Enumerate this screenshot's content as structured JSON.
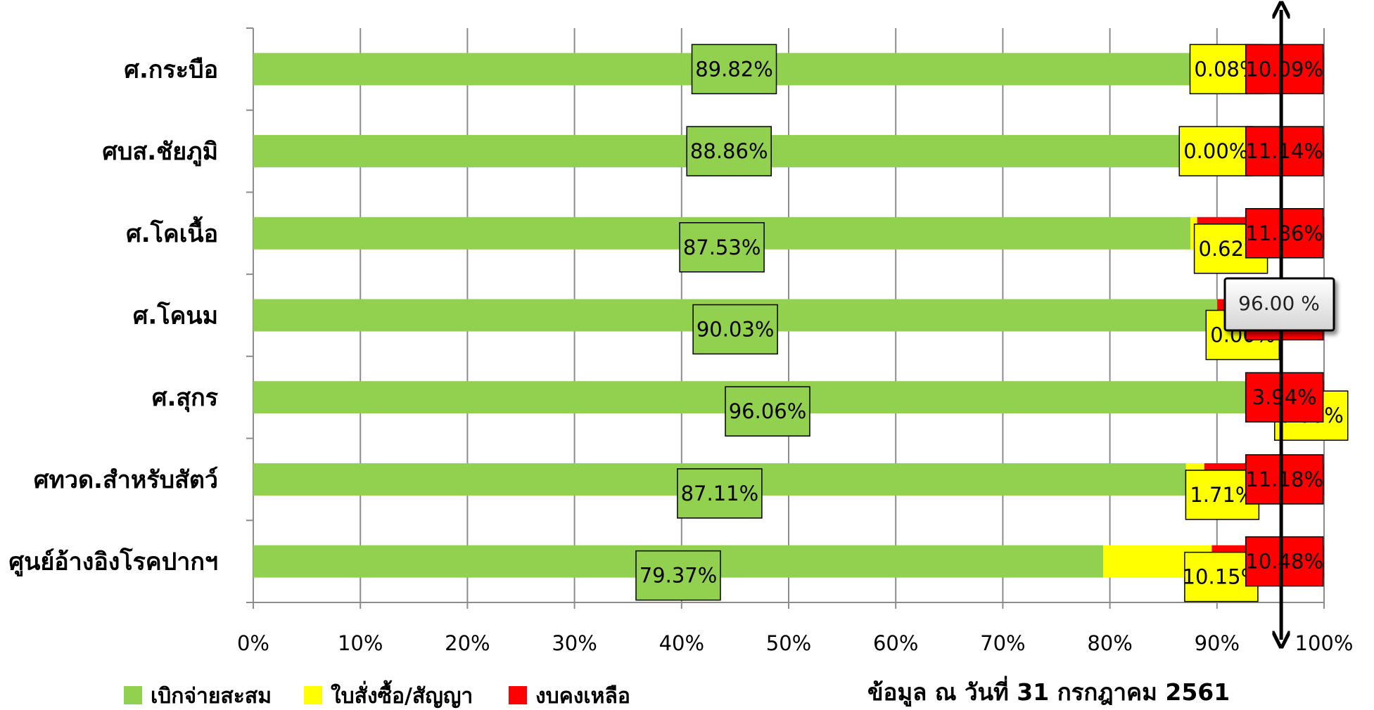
{
  "chart_data": {
    "type": "bar",
    "orientation": "horizontal",
    "stacked": "percent",
    "categories": [
      "ศ.กระบือ",
      "ศบส.ชัยภูมิ",
      "ศ.โคเนื้อ",
      "ศ.โคนม",
      "ศ.สุกร",
      "ศทวด.สำหรับสัตว์",
      "ศูนย์อ้างอิงโรคปากฯ"
    ],
    "series": [
      {
        "name": "เบิกจ่ายสะสม",
        "color": "#92D050",
        "values": [
          89.82,
          88.86,
          87.53,
          90.03,
          96.06,
          87.11,
          79.37
        ],
        "labels": [
          "89.82%",
          "88.86%",
          "87.53%",
          "90.03%",
          "96.06%",
          "87.11%",
          "79.37%"
        ]
      },
      {
        "name": "ใบสั่งซื้อ/สัญญา",
        "color": "#FFFF00",
        "values": [
          0.08,
          0.0,
          0.62,
          0.0,
          0.0,
          1.71,
          10.15
        ],
        "labels": [
          "0.08%",
          "0.00%",
          "0.62%",
          "0.00%",
          "0.00%",
          "1.71%",
          "10.15%"
        ]
      },
      {
        "name": "งบคงเหลือ",
        "color": "#FF0000",
        "values": [
          10.09,
          11.14,
          11.86,
          9.97,
          3.94,
          11.18,
          10.48
        ],
        "labels": [
          "10.09%",
          "11.14%",
          "11.86%",
          "9.97%",
          "3.94%",
          "11.18%",
          "10.48%"
        ]
      }
    ],
    "x_ticks": [
      "0%",
      "10%",
      "20%",
      "30%",
      "40%",
      "50%",
      "60%",
      "70%",
      "80%",
      "90%",
      "100%"
    ],
    "xlim": [
      0,
      100
    ],
    "grid": true,
    "legend_placement": "bottom-left",
    "target_line": {
      "value": 96,
      "label": "96.00 %"
    },
    "note": "ข้อมูล ณ วันที่ 31 กรกฎาคม 2561"
  }
}
